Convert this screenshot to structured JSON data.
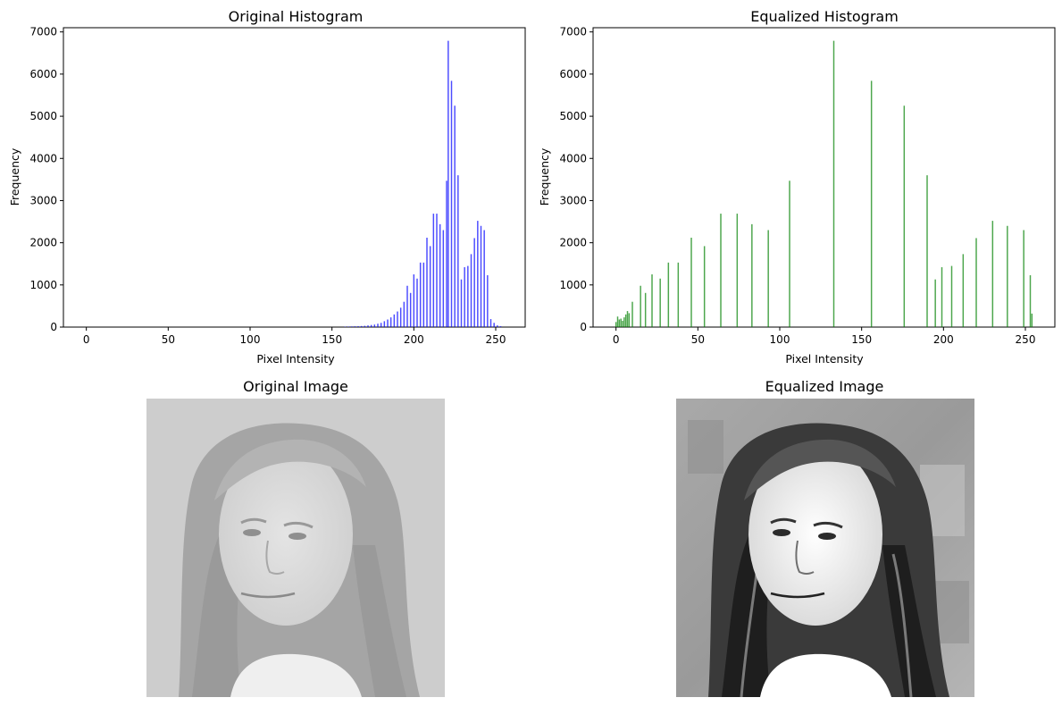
{
  "chart_data": [
    {
      "type": "bar",
      "title": "Original Histogram",
      "xlabel": "Pixel Intensity",
      "ylabel": "Frequency",
      "xlim": [
        -14,
        268
      ],
      "ylim": [
        0,
        7100
      ],
      "xticks": [
        0,
        50,
        100,
        150,
        200,
        250
      ],
      "yticks": [
        0,
        1000,
        2000,
        3000,
        4000,
        5000,
        6000,
        7000
      ],
      "color": "#0000ff",
      "points": [
        [
          158,
          10
        ],
        [
          160,
          12
        ],
        [
          162,
          15
        ],
        [
          164,
          18
        ],
        [
          166,
          20
        ],
        [
          168,
          25
        ],
        [
          170,
          30
        ],
        [
          172,
          40
        ],
        [
          174,
          50
        ],
        [
          176,
          60
        ],
        [
          178,
          80
        ],
        [
          180,
          100
        ],
        [
          182,
          140
        ],
        [
          184,
          180
        ],
        [
          186,
          230
        ],
        [
          188,
          300
        ],
        [
          190,
          370
        ],
        [
          192,
          460
        ],
        [
          194,
          600
        ],
        [
          196,
          980
        ],
        [
          198,
          810
        ],
        [
          200,
          1250
        ],
        [
          202,
          1150
        ],
        [
          204,
          1530
        ],
        [
          206,
          1530
        ],
        [
          208,
          2120
        ],
        [
          210,
          1920
        ],
        [
          212,
          2690
        ],
        [
          214,
          2690
        ],
        [
          216,
          2440
        ],
        [
          218,
          2300
        ],
        [
          220,
          3470
        ],
        [
          221,
          6790
        ],
        [
          223,
          5840
        ],
        [
          225,
          5250
        ],
        [
          227,
          3600
        ],
        [
          229,
          1130
        ],
        [
          231,
          1420
        ],
        [
          233,
          1450
        ],
        [
          235,
          1730
        ],
        [
          237,
          2110
        ],
        [
          239,
          2520
        ],
        [
          241,
          2400
        ],
        [
          243,
          2300
        ],
        [
          245,
          1230
        ],
        [
          247,
          190
        ],
        [
          249,
          100
        ],
        [
          251,
          40
        ],
        [
          253,
          20
        ]
      ]
    },
    {
      "type": "bar",
      "title": "Equalized Histogram",
      "xlabel": "Pixel Intensity",
      "ylabel": "Frequency",
      "xlim": [
        -14,
        268
      ],
      "ylim": [
        0,
        7100
      ],
      "xticks": [
        0,
        50,
        100,
        150,
        200,
        250
      ],
      "yticks": [
        0,
        1000,
        2000,
        3000,
        4000,
        5000,
        6000,
        7000
      ],
      "color": "#008000",
      "points": [
        [
          0,
          120
        ],
        [
          1,
          250
        ],
        [
          2,
          180
        ],
        [
          3,
          200
        ],
        [
          4,
          150
        ],
        [
          5,
          230
        ],
        [
          6,
          300
        ],
        [
          7,
          380
        ],
        [
          8,
          330
        ],
        [
          10,
          600
        ],
        [
          15,
          980
        ],
        [
          18,
          810
        ],
        [
          22,
          1250
        ],
        [
          27,
          1150
        ],
        [
          32,
          1530
        ],
        [
          38,
          1530
        ],
        [
          46,
          2120
        ],
        [
          54,
          1920
        ],
        [
          64,
          2690
        ],
        [
          74,
          2690
        ],
        [
          83,
          2440
        ],
        [
          93,
          2300
        ],
        [
          106,
          3470
        ],
        [
          133,
          6790
        ],
        [
          156,
          5840
        ],
        [
          176,
          5250
        ],
        [
          190,
          3600
        ],
        [
          195,
          1130
        ],
        [
          199,
          1420
        ],
        [
          205,
          1450
        ],
        [
          212,
          1730
        ],
        [
          220,
          2110
        ],
        [
          230,
          2520
        ],
        [
          239,
          2400
        ],
        [
          249,
          2300
        ],
        [
          253,
          1230
        ],
        [
          254,
          320
        ]
      ]
    }
  ],
  "images": {
    "original_title": "Original Image",
    "equalized_title": "Equalized Image"
  }
}
